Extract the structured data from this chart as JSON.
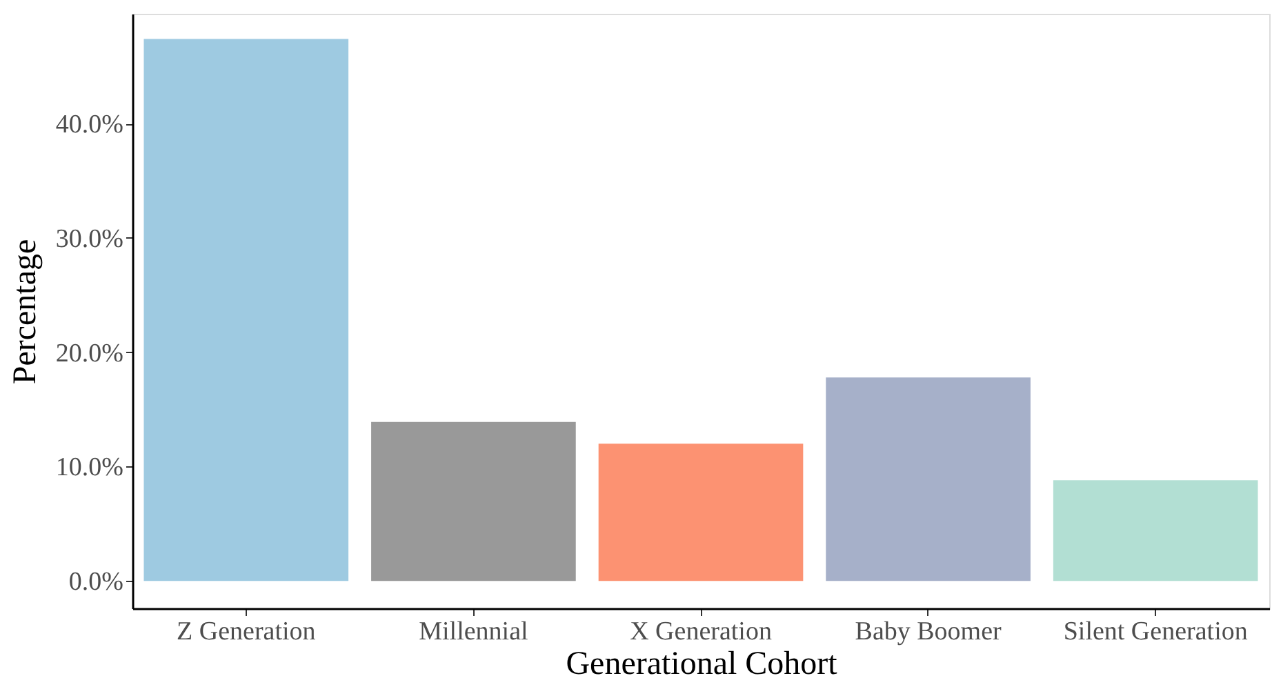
{
  "chart_data": {
    "type": "bar",
    "xlabel": "Generational Cohort",
    "ylabel": "Percentage",
    "categories": [
      "Z Generation",
      "Millennial",
      "X Generation",
      "Baby Boomer",
      "Silent Generation"
    ],
    "values": [
      47.4,
      13.9,
      12.0,
      17.8,
      8.8
    ],
    "colors": [
      "#9ecae1",
      "#999999",
      "#fc9272",
      "#a6b0c9",
      "#b2dfd3"
    ],
    "ylim": [
      -2.4,
      49.6
    ],
    "yticks": [
      {
        "value": 0,
        "label": "0.0%"
      },
      {
        "value": 10,
        "label": "10.0%"
      },
      {
        "value": 20,
        "label": "20.0%"
      },
      {
        "value": 30,
        "label": "30.0%"
      },
      {
        "value": 40,
        "label": "40.0%"
      }
    ],
    "grid": false
  }
}
